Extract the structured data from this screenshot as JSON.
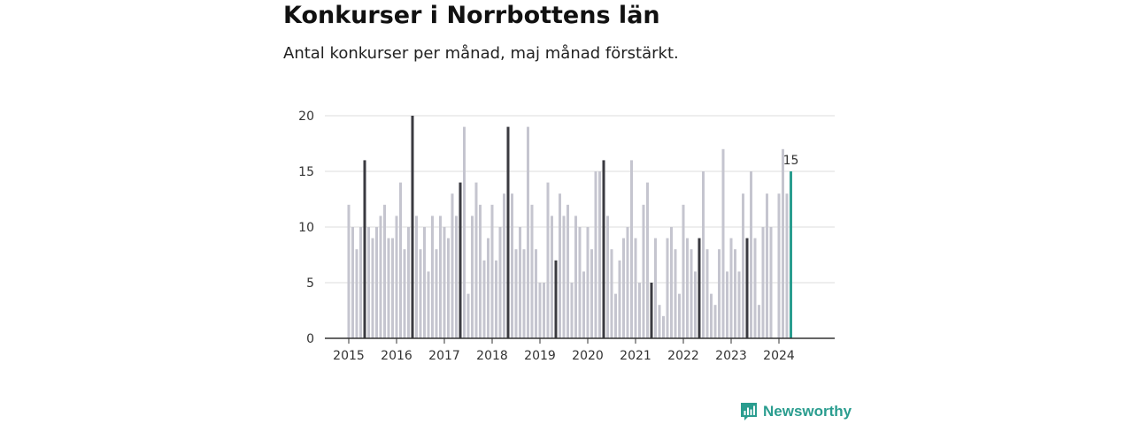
{
  "title": "Konkurser i Norrbottens län",
  "subtitle": "Antal konkurser per månad, maj månad förstärkt.",
  "brand": {
    "name": "Newsworthy",
    "color": "#2a9d8f"
  },
  "chart_data": {
    "type": "bar",
    "x_start": "2015-01",
    "highlight_month": "maj",
    "values": [
      12,
      10,
      8,
      10,
      16,
      10,
      9,
      10,
      11,
      12,
      9,
      9,
      11,
      14,
      8,
      10,
      20,
      11,
      8,
      10,
      6,
      11,
      8,
      11,
      10,
      9,
      13,
      11,
      14,
      19,
      4,
      11,
      14,
      12,
      7,
      9,
      12,
      7,
      10,
      13,
      19,
      13,
      8,
      10,
      8,
      19,
      12,
      8,
      5,
      5,
      14,
      11,
      7,
      13,
      11,
      12,
      5,
      11,
      10,
      6,
      10,
      8,
      15,
      15,
      16,
      11,
      8,
      4,
      7,
      9,
      10,
      16,
      9,
      5,
      12,
      14,
      5,
      9,
      3,
      2,
      9,
      10,
      8,
      4,
      12,
      9,
      8,
      6,
      9,
      15,
      8,
      4,
      3,
      8,
      17,
      6,
      9,
      8,
      6,
      13,
      9,
      15,
      9,
      3,
      10,
      13,
      10,
      0,
      13,
      17,
      13,
      15
    ],
    "highlight_indices": [
      4,
      16,
      28,
      40,
      52,
      64,
      76,
      88,
      100
    ],
    "last_label": "15",
    "x_ticks": [
      "2015",
      "2016",
      "2017",
      "2018",
      "2019",
      "2020",
      "2021",
      "2022",
      "2023",
      "2024"
    ],
    "y_ticks": [
      0,
      5,
      10,
      15,
      20
    ],
    "ylim": [
      0,
      20
    ],
    "grid": true,
    "colors": {
      "regular": "#c5c5cf",
      "highlight": "#3a3a40",
      "latest": "#2a9d8f",
      "grid": "#dddddd",
      "axis": "#333333"
    }
  }
}
